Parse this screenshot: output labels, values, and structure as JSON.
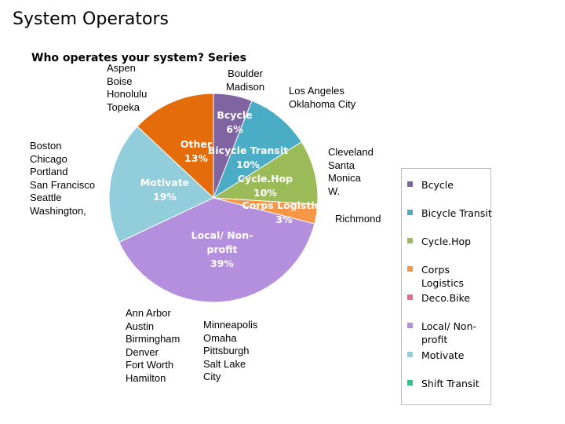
{
  "page": {
    "title": "System Operators"
  },
  "chart_data": {
    "type": "pie",
    "title": "Who operates your system? Series",
    "slices": [
      {
        "label": "Bcycle",
        "value": 6,
        "percent_label": "6%",
        "color": "#8064a2"
      },
      {
        "label": "Bicycle Transit",
        "value": 10,
        "percent_label": "10%",
        "color": "#4bacc6"
      },
      {
        "label": "Cycle.Hop",
        "value": 10,
        "percent_label": "10%",
        "color": "#9bbb59"
      },
      {
        "label": "Corps Logistics",
        "value": 3,
        "percent_label": "3%",
        "color": "#f79646"
      },
      {
        "label": "Local/ Non-profit",
        "value": 39,
        "percent_label": "39%",
        "color": "#b48fdd"
      },
      {
        "label": "Motivate",
        "value": 19,
        "percent_label": "19%",
        "color": "#92cddc"
      },
      {
        "label": "Other",
        "value": 13,
        "percent_label": "13%",
        "color": "#e46c0a"
      }
    ],
    "legend": {
      "position": "right",
      "items": [
        {
          "label": "Bcycle",
          "color": "#8064a2"
        },
        {
          "label": "Bicycle Transit",
          "color": "#4bacc6"
        },
        {
          "label": "Cycle.Hop",
          "color": "#9bbb59"
        },
        {
          "label": "Corps Logistics",
          "color": "#f79646"
        },
        {
          "label": "Deco.Bike",
          "color": "#e46c8c"
        },
        {
          "label": "Local/ Non-profit",
          "color": "#b48fdd"
        },
        {
          "label": "Motivate",
          "color": "#92cddc"
        },
        {
          "label": "Shift Transit",
          "color": "#2ec28e"
        }
      ]
    }
  },
  "city_annotations": {
    "other": "Aspen\nBoise\nHonolulu\nTopeka",
    "bcycle": "Boulder\nMadison",
    "bicycle_transit": "Los Angeles\nOklahoma City",
    "motivate": "Boston\nChicago\nPortland\nSan Francisco\nSeattle\nWashington,",
    "cycle_hop": "Cleveland\nSanta\nMonica\nW.",
    "corps_logistics": "Richmond",
    "local_left": "Ann Arbor\nAustin\nBirmingham\nDenver\nFort Worth\nHamilton",
    "local_right": "Minneapolis\nOmaha\nPittsburgh\nSalt Lake\nCity"
  }
}
